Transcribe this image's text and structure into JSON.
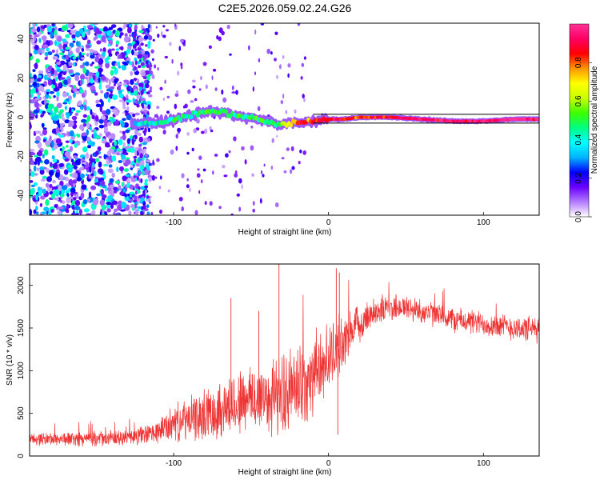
{
  "title": "C2E5.2026.059.02.24.G26",
  "chart_data": [
    {
      "type": "heatmap",
      "title": "C2E5.2026.059.02.24.G26",
      "xlabel": "Height of straight line (km)",
      "ylabel": "Frequency (Hz)",
      "xlim": [
        -193,
        136
      ],
      "ylim": [
        -50,
        48
      ],
      "xticks": [
        -100,
        0,
        100
      ],
      "yticks": [
        -40,
        -20,
        0,
        20,
        40
      ],
      "colorbar": {
        "label": "Normalized spectral amplitude",
        "range": [
          0,
          1
        ],
        "ticks": [
          "0.0",
          "0.2",
          "0.4",
          "0.6",
          "0.8"
        ],
        "tick_values": [
          0,
          0.2,
          0.4,
          0.6,
          0.8
        ],
        "colors": [
          "#ffffff",
          "#b27dff",
          "#6a00ff",
          "#0000ff",
          "#00b4ff",
          "#00ffff",
          "#00ff80",
          "#3cff00",
          "#c8ff00",
          "#ffff00",
          "#ff9600",
          "#ff0000",
          "#ff0064",
          "#ff3296"
        ]
      },
      "noise_region_end_km": -125,
      "signal_track": {
        "x_km": [
          -125,
          -115,
          -105,
          -95,
          -85,
          -75,
          -65,
          -55,
          -45,
          -35,
          -30,
          -25,
          -20,
          -10,
          0,
          10,
          20,
          40,
          60,
          80,
          100,
          120,
          136
        ],
        "freq_hz": [
          -3,
          -3,
          -2,
          0,
          2,
          3,
          2,
          0,
          -1,
          -3,
          -4,
          -3,
          -3,
          -2,
          -1,
          -1,
          0,
          0,
          -1,
          -2,
          -2,
          -1,
          -1
        ],
        "amplitude": [
          0.35,
          0.4,
          0.45,
          0.45,
          0.45,
          0.5,
          0.5,
          0.45,
          0.5,
          0.5,
          0.55,
          0.7,
          0.85,
          0.85,
          0.85,
          0.9,
          0.8,
          0.9,
          0.95,
          0.95,
          0.95,
          1.0,
          0.95
        ]
      }
    },
    {
      "type": "line",
      "xlabel": "Height of straight line (km)",
      "ylabel": "SNR (10 * v/v)",
      "xlim": [
        -193,
        136
      ],
      "ylim": [
        0,
        2250
      ],
      "xticks": [
        -100,
        0,
        100
      ],
      "yticks": [
        0,
        500,
        1000,
        1500,
        2000
      ],
      "color": "#ee3333",
      "envelope": {
        "x": [
          -193,
          -160,
          -130,
          -112,
          -100,
          -85,
          -70,
          -55,
          -40,
          -30,
          -20,
          -10,
          0,
          10,
          20,
          30,
          45,
          60,
          80,
          100,
          120,
          136
        ],
        "mean": [
          200,
          200,
          210,
          270,
          380,
          450,
          550,
          650,
          700,
          720,
          800,
          950,
          1150,
          1350,
          1550,
          1700,
          1750,
          1700,
          1600,
          1550,
          1500,
          1480
        ],
        "spread": [
          70,
          80,
          90,
          120,
          200,
          260,
          330,
          380,
          420,
          450,
          480,
          450,
          380,
          300,
          200,
          160,
          150,
          140,
          140,
          140,
          140,
          150
        ]
      },
      "spikes": [
        {
          "x": -32,
          "y": 2250
        },
        {
          "x": 5,
          "y": 2200
        },
        {
          "x": 7,
          "y": 2150
        },
        {
          "x": -63,
          "y": 1850
        },
        {
          "x": -45,
          "y": 1700
        },
        {
          "x": 6,
          "y": 250
        }
      ]
    }
  ]
}
